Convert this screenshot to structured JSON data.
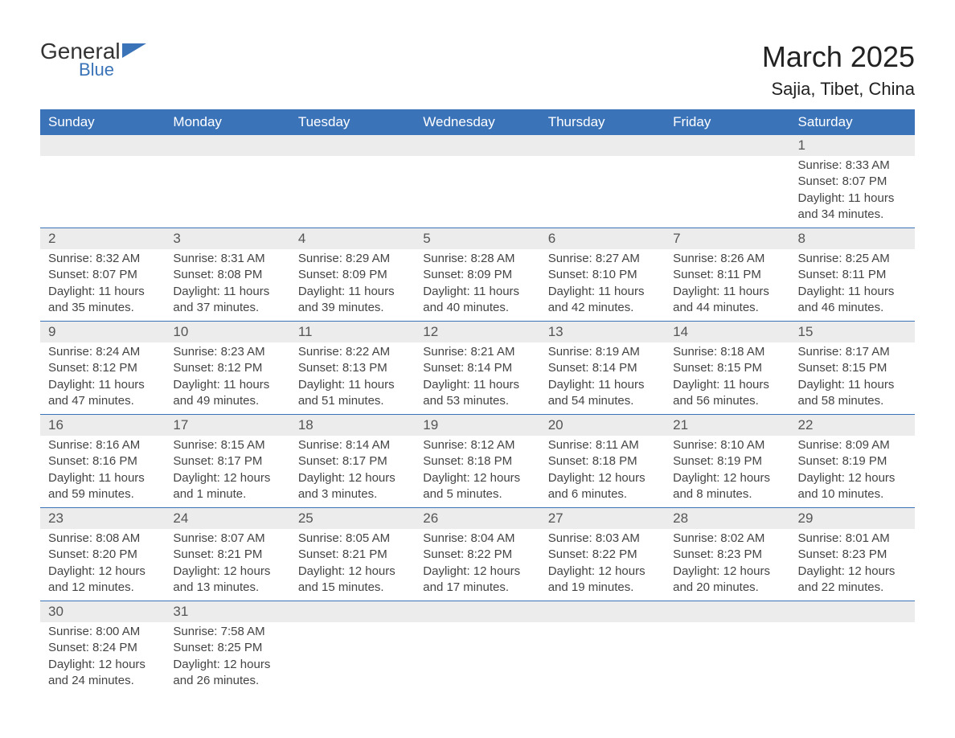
{
  "logo": {
    "text_top": "General",
    "text_bottom": "Blue"
  },
  "title": "March 2025",
  "subtitle": "Sajia, Tibet, China",
  "colors": {
    "header_bg": "#3b73b9",
    "header_text": "#ffffff",
    "daynum_bg": "#ececec",
    "daynum_text": "#555555",
    "body_text": "#444444",
    "rule": "#3b73b9",
    "page_bg": "#ffffff",
    "logo_accent": "#3b73b9",
    "logo_text": "#333333"
  },
  "typography": {
    "title_fontsize": 36,
    "subtitle_fontsize": 22,
    "dayheader_fontsize": 17,
    "daynum_fontsize": 17,
    "cell_fontsize": 15,
    "font_family": "Arial"
  },
  "layout": {
    "columns": 7,
    "rows": 6
  },
  "day_headers": [
    "Sunday",
    "Monday",
    "Tuesday",
    "Wednesday",
    "Thursday",
    "Friday",
    "Saturday"
  ],
  "weeks": [
    [
      null,
      null,
      null,
      null,
      null,
      null,
      {
        "day": "1",
        "sunrise": "Sunrise: 8:33 AM",
        "sunset": "Sunset: 8:07 PM",
        "daylight1": "Daylight: 11 hours",
        "daylight2": "and 34 minutes."
      }
    ],
    [
      {
        "day": "2",
        "sunrise": "Sunrise: 8:32 AM",
        "sunset": "Sunset: 8:07 PM",
        "daylight1": "Daylight: 11 hours",
        "daylight2": "and 35 minutes."
      },
      {
        "day": "3",
        "sunrise": "Sunrise: 8:31 AM",
        "sunset": "Sunset: 8:08 PM",
        "daylight1": "Daylight: 11 hours",
        "daylight2": "and 37 minutes."
      },
      {
        "day": "4",
        "sunrise": "Sunrise: 8:29 AM",
        "sunset": "Sunset: 8:09 PM",
        "daylight1": "Daylight: 11 hours",
        "daylight2": "and 39 minutes."
      },
      {
        "day": "5",
        "sunrise": "Sunrise: 8:28 AM",
        "sunset": "Sunset: 8:09 PM",
        "daylight1": "Daylight: 11 hours",
        "daylight2": "and 40 minutes."
      },
      {
        "day": "6",
        "sunrise": "Sunrise: 8:27 AM",
        "sunset": "Sunset: 8:10 PM",
        "daylight1": "Daylight: 11 hours",
        "daylight2": "and 42 minutes."
      },
      {
        "day": "7",
        "sunrise": "Sunrise: 8:26 AM",
        "sunset": "Sunset: 8:11 PM",
        "daylight1": "Daylight: 11 hours",
        "daylight2": "and 44 minutes."
      },
      {
        "day": "8",
        "sunrise": "Sunrise: 8:25 AM",
        "sunset": "Sunset: 8:11 PM",
        "daylight1": "Daylight: 11 hours",
        "daylight2": "and 46 minutes."
      }
    ],
    [
      {
        "day": "9",
        "sunrise": "Sunrise: 8:24 AM",
        "sunset": "Sunset: 8:12 PM",
        "daylight1": "Daylight: 11 hours",
        "daylight2": "and 47 minutes."
      },
      {
        "day": "10",
        "sunrise": "Sunrise: 8:23 AM",
        "sunset": "Sunset: 8:12 PM",
        "daylight1": "Daylight: 11 hours",
        "daylight2": "and 49 minutes."
      },
      {
        "day": "11",
        "sunrise": "Sunrise: 8:22 AM",
        "sunset": "Sunset: 8:13 PM",
        "daylight1": "Daylight: 11 hours",
        "daylight2": "and 51 minutes."
      },
      {
        "day": "12",
        "sunrise": "Sunrise: 8:21 AM",
        "sunset": "Sunset: 8:14 PM",
        "daylight1": "Daylight: 11 hours",
        "daylight2": "and 53 minutes."
      },
      {
        "day": "13",
        "sunrise": "Sunrise: 8:19 AM",
        "sunset": "Sunset: 8:14 PM",
        "daylight1": "Daylight: 11 hours",
        "daylight2": "and 54 minutes."
      },
      {
        "day": "14",
        "sunrise": "Sunrise: 8:18 AM",
        "sunset": "Sunset: 8:15 PM",
        "daylight1": "Daylight: 11 hours",
        "daylight2": "and 56 minutes."
      },
      {
        "day": "15",
        "sunrise": "Sunrise: 8:17 AM",
        "sunset": "Sunset: 8:15 PM",
        "daylight1": "Daylight: 11 hours",
        "daylight2": "and 58 minutes."
      }
    ],
    [
      {
        "day": "16",
        "sunrise": "Sunrise: 8:16 AM",
        "sunset": "Sunset: 8:16 PM",
        "daylight1": "Daylight: 11 hours",
        "daylight2": "and 59 minutes."
      },
      {
        "day": "17",
        "sunrise": "Sunrise: 8:15 AM",
        "sunset": "Sunset: 8:17 PM",
        "daylight1": "Daylight: 12 hours",
        "daylight2": "and 1 minute."
      },
      {
        "day": "18",
        "sunrise": "Sunrise: 8:14 AM",
        "sunset": "Sunset: 8:17 PM",
        "daylight1": "Daylight: 12 hours",
        "daylight2": "and 3 minutes."
      },
      {
        "day": "19",
        "sunrise": "Sunrise: 8:12 AM",
        "sunset": "Sunset: 8:18 PM",
        "daylight1": "Daylight: 12 hours",
        "daylight2": "and 5 minutes."
      },
      {
        "day": "20",
        "sunrise": "Sunrise: 8:11 AM",
        "sunset": "Sunset: 8:18 PM",
        "daylight1": "Daylight: 12 hours",
        "daylight2": "and 6 minutes."
      },
      {
        "day": "21",
        "sunrise": "Sunrise: 8:10 AM",
        "sunset": "Sunset: 8:19 PM",
        "daylight1": "Daylight: 12 hours",
        "daylight2": "and 8 minutes."
      },
      {
        "day": "22",
        "sunrise": "Sunrise: 8:09 AM",
        "sunset": "Sunset: 8:19 PM",
        "daylight1": "Daylight: 12 hours",
        "daylight2": "and 10 minutes."
      }
    ],
    [
      {
        "day": "23",
        "sunrise": "Sunrise: 8:08 AM",
        "sunset": "Sunset: 8:20 PM",
        "daylight1": "Daylight: 12 hours",
        "daylight2": "and 12 minutes."
      },
      {
        "day": "24",
        "sunrise": "Sunrise: 8:07 AM",
        "sunset": "Sunset: 8:21 PM",
        "daylight1": "Daylight: 12 hours",
        "daylight2": "and 13 minutes."
      },
      {
        "day": "25",
        "sunrise": "Sunrise: 8:05 AM",
        "sunset": "Sunset: 8:21 PM",
        "daylight1": "Daylight: 12 hours",
        "daylight2": "and 15 minutes."
      },
      {
        "day": "26",
        "sunrise": "Sunrise: 8:04 AM",
        "sunset": "Sunset: 8:22 PM",
        "daylight1": "Daylight: 12 hours",
        "daylight2": "and 17 minutes."
      },
      {
        "day": "27",
        "sunrise": "Sunrise: 8:03 AM",
        "sunset": "Sunset: 8:22 PM",
        "daylight1": "Daylight: 12 hours",
        "daylight2": "and 19 minutes."
      },
      {
        "day": "28",
        "sunrise": "Sunrise: 8:02 AM",
        "sunset": "Sunset: 8:23 PM",
        "daylight1": "Daylight: 12 hours",
        "daylight2": "and 20 minutes."
      },
      {
        "day": "29",
        "sunrise": "Sunrise: 8:01 AM",
        "sunset": "Sunset: 8:23 PM",
        "daylight1": "Daylight: 12 hours",
        "daylight2": "and 22 minutes."
      }
    ],
    [
      {
        "day": "30",
        "sunrise": "Sunrise: 8:00 AM",
        "sunset": "Sunset: 8:24 PM",
        "daylight1": "Daylight: 12 hours",
        "daylight2": "and 24 minutes."
      },
      {
        "day": "31",
        "sunrise": "Sunrise: 7:58 AM",
        "sunset": "Sunset: 8:25 PM",
        "daylight1": "Daylight: 12 hours",
        "daylight2": "and 26 minutes."
      },
      null,
      null,
      null,
      null,
      null
    ]
  ]
}
